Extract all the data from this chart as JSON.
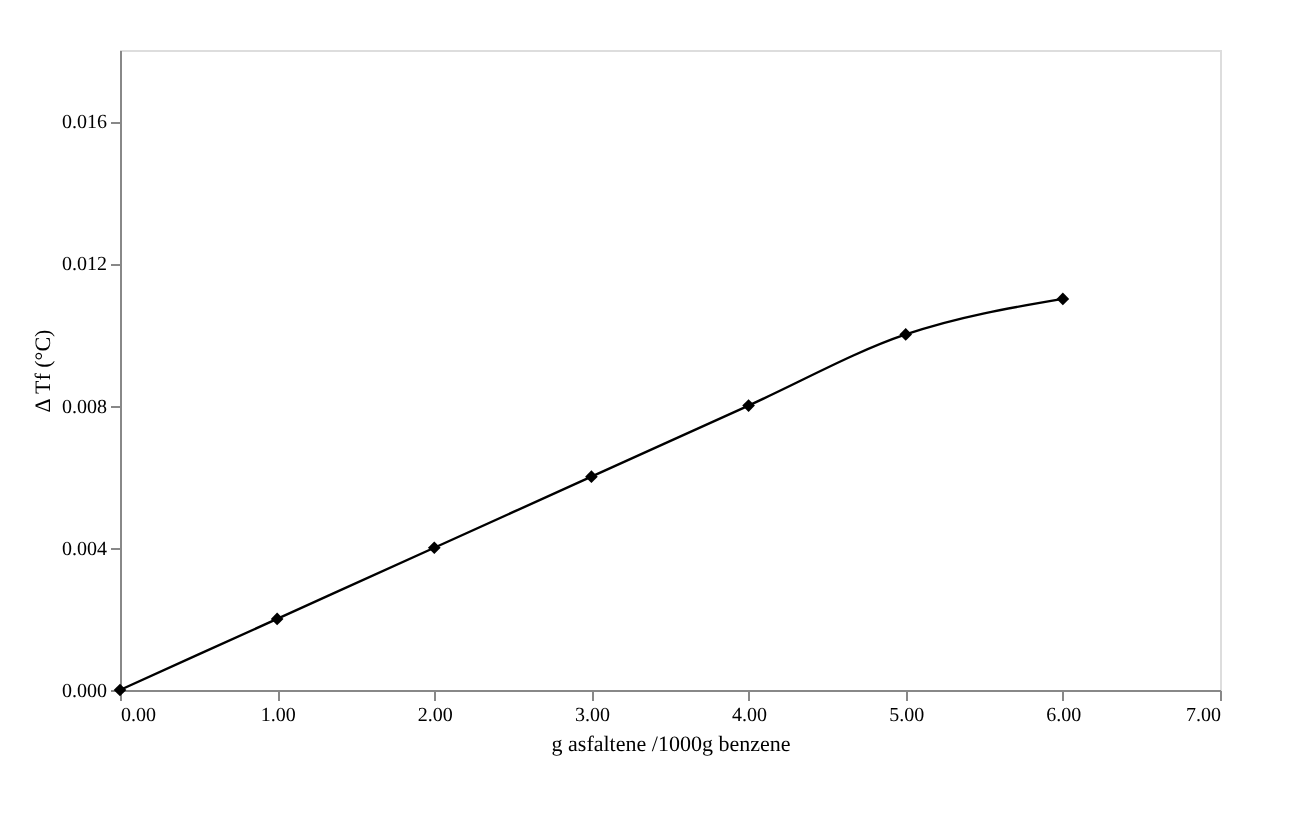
{
  "chart_data": {
    "type": "line",
    "xlabel": "g asfaltene /1000g benzene",
    "ylabel": "Δ Tf (°C)",
    "x": [
      0,
      1,
      2,
      3,
      4,
      5,
      6
    ],
    "series": [
      {
        "color": "#000000",
        "values": [
          0.0,
          0.002,
          0.004,
          0.006,
          0.008,
          0.01,
          0.011
        ]
      }
    ],
    "xlim": [
      0,
      7
    ],
    "ylim": [
      0,
      0.018
    ],
    "xticks": [
      {
        "value": 0,
        "label": "0.00"
      },
      {
        "value": 1,
        "label": "1.00"
      },
      {
        "value": 2,
        "label": "2.00"
      },
      {
        "value": 3,
        "label": "3.00"
      },
      {
        "value": 4,
        "label": "4.00"
      },
      {
        "value": 5,
        "label": "5.00"
      },
      {
        "value": 6,
        "label": "6.00"
      },
      {
        "value": 7,
        "label": "7.00"
      }
    ],
    "yticks": [
      {
        "value": 0,
        "label": "0.000"
      },
      {
        "value": 0.004,
        "label": "0.004"
      },
      {
        "value": 0.008,
        "label": "0.008"
      },
      {
        "value": 0.012,
        "label": "0.012"
      },
      {
        "value": 0.016,
        "label": "0.016"
      }
    ],
    "marker": "diamond",
    "line_style": "solid",
    "grid": false,
    "legend": false
  }
}
